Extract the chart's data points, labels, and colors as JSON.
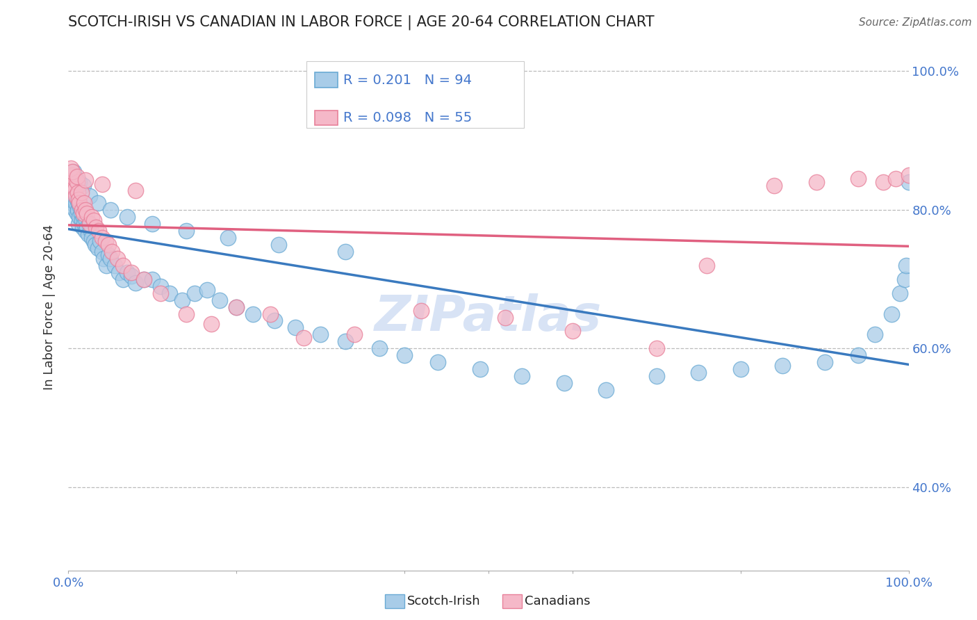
{
  "title": "SCOTCH-IRISH VS CANADIAN IN LABOR FORCE | AGE 20-64 CORRELATION CHART",
  "source": "Source: ZipAtlas.com",
  "ylabel": "In Labor Force | Age 20-64",
  "blue_R": 0.201,
  "blue_N": 94,
  "pink_R": 0.098,
  "pink_N": 55,
  "blue_color": "#a8cce8",
  "pink_color": "#f5b8c8",
  "blue_edge_color": "#6aaad4",
  "pink_edge_color": "#e8809a",
  "blue_line_color": "#3a7abf",
  "pink_line_color": "#e06080",
  "text_blue": "#4477cc",
  "watermark": "ZIPatlas",
  "xlim": [
    0.0,
    1.0
  ],
  "ylim": [
    0.28,
    1.04
  ],
  "ytick_positions": [
    0.4,
    0.6,
    0.8,
    1.0
  ],
  "ytick_labels": [
    "40.0%",
    "60.0%",
    "80.0%",
    "100.0%"
  ],
  "blue_x": [
    0.002,
    0.003,
    0.003,
    0.004,
    0.004,
    0.005,
    0.005,
    0.006,
    0.006,
    0.007,
    0.007,
    0.008,
    0.008,
    0.009,
    0.009,
    0.01,
    0.01,
    0.011,
    0.012,
    0.012,
    0.013,
    0.014,
    0.015,
    0.016,
    0.017,
    0.018,
    0.019,
    0.02,
    0.021,
    0.022,
    0.024,
    0.025,
    0.027,
    0.028,
    0.03,
    0.032,
    0.035,
    0.038,
    0.04,
    0.042,
    0.045,
    0.048,
    0.05,
    0.055,
    0.06,
    0.065,
    0.07,
    0.075,
    0.08,
    0.09,
    0.1,
    0.11,
    0.12,
    0.135,
    0.15,
    0.165,
    0.18,
    0.2,
    0.22,
    0.245,
    0.27,
    0.3,
    0.33,
    0.37,
    0.4,
    0.44,
    0.49,
    0.54,
    0.59,
    0.64,
    0.7,
    0.75,
    0.8,
    0.85,
    0.9,
    0.94,
    0.96,
    0.98,
    0.99,
    0.995,
    0.997,
    1.0,
    0.003,
    0.006,
    0.009,
    0.013,
    0.018,
    0.025,
    0.035,
    0.05,
    0.07,
    0.1,
    0.14,
    0.19,
    0.25,
    0.33
  ],
  "blue_y": [
    0.83,
    0.82,
    0.84,
    0.825,
    0.835,
    0.81,
    0.83,
    0.82,
    0.84,
    0.825,
    0.815,
    0.8,
    0.83,
    0.81,
    0.825,
    0.795,
    0.815,
    0.8,
    0.78,
    0.81,
    0.79,
    0.805,
    0.795,
    0.785,
    0.775,
    0.79,
    0.78,
    0.77,
    0.785,
    0.775,
    0.765,
    0.78,
    0.77,
    0.76,
    0.755,
    0.75,
    0.745,
    0.755,
    0.74,
    0.73,
    0.72,
    0.735,
    0.73,
    0.72,
    0.71,
    0.7,
    0.71,
    0.705,
    0.695,
    0.7,
    0.7,
    0.69,
    0.68,
    0.67,
    0.68,
    0.685,
    0.67,
    0.66,
    0.65,
    0.64,
    0.63,
    0.62,
    0.61,
    0.6,
    0.59,
    0.58,
    0.57,
    0.56,
    0.55,
    0.54,
    0.56,
    0.565,
    0.57,
    0.575,
    0.58,
    0.59,
    0.62,
    0.65,
    0.68,
    0.7,
    0.72,
    0.84,
    0.85,
    0.855,
    0.845,
    0.84,
    0.835,
    0.82,
    0.81,
    0.8,
    0.79,
    0.78,
    0.77,
    0.76,
    0.75,
    0.74
  ],
  "pink_x": [
    0.002,
    0.003,
    0.004,
    0.005,
    0.006,
    0.007,
    0.008,
    0.009,
    0.01,
    0.011,
    0.012,
    0.013,
    0.015,
    0.016,
    0.018,
    0.019,
    0.02,
    0.022,
    0.025,
    0.028,
    0.03,
    0.033,
    0.036,
    0.04,
    0.044,
    0.048,
    0.052,
    0.058,
    0.065,
    0.075,
    0.09,
    0.11,
    0.14,
    0.17,
    0.2,
    0.24,
    0.28,
    0.34,
    0.42,
    0.52,
    0.6,
    0.7,
    0.76,
    0.84,
    0.89,
    0.94,
    0.97,
    0.985,
    1.0,
    0.003,
    0.005,
    0.01,
    0.02,
    0.04,
    0.08
  ],
  "pink_y": [
    0.84,
    0.83,
    0.84,
    0.85,
    0.835,
    0.845,
    0.83,
    0.82,
    0.84,
    0.825,
    0.815,
    0.81,
    0.825,
    0.8,
    0.795,
    0.81,
    0.8,
    0.795,
    0.78,
    0.79,
    0.785,
    0.775,
    0.77,
    0.76,
    0.755,
    0.75,
    0.74,
    0.73,
    0.72,
    0.71,
    0.7,
    0.68,
    0.65,
    0.635,
    0.66,
    0.65,
    0.615,
    0.62,
    0.655,
    0.645,
    0.625,
    0.6,
    0.72,
    0.835,
    0.84,
    0.845,
    0.84,
    0.845,
    0.85,
    0.86,
    0.855,
    0.848,
    0.843,
    0.837,
    0.828
  ]
}
